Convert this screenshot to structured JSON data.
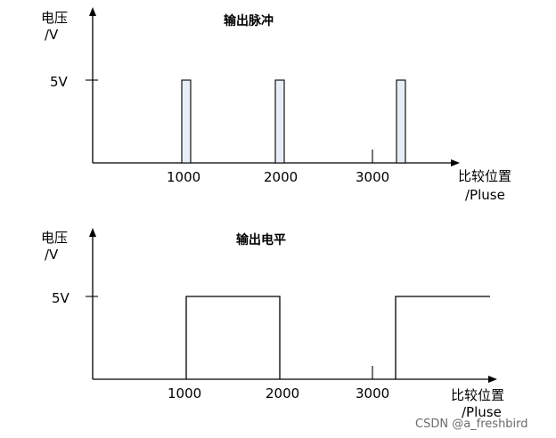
{
  "top": {
    "title": "输出脉冲",
    "y_label_line1": "电压",
    "y_label_line2": "/V",
    "y_tick": "5V",
    "x_ticks": [
      "1000",
      "2000",
      "3000"
    ],
    "x_label_line1": "比较位置",
    "x_label_line2": "/Pluse"
  },
  "bottom": {
    "title": "输出电平",
    "y_label_line1": "电压",
    "y_label_line2": "/V",
    "y_tick": "5V",
    "x_ticks": [
      "1000",
      "2000",
      "3000"
    ],
    "x_label_line1": "比较位置",
    "x_label_line2": "/Pluse"
  },
  "watermark": "CSDN @a_freshbird"
}
